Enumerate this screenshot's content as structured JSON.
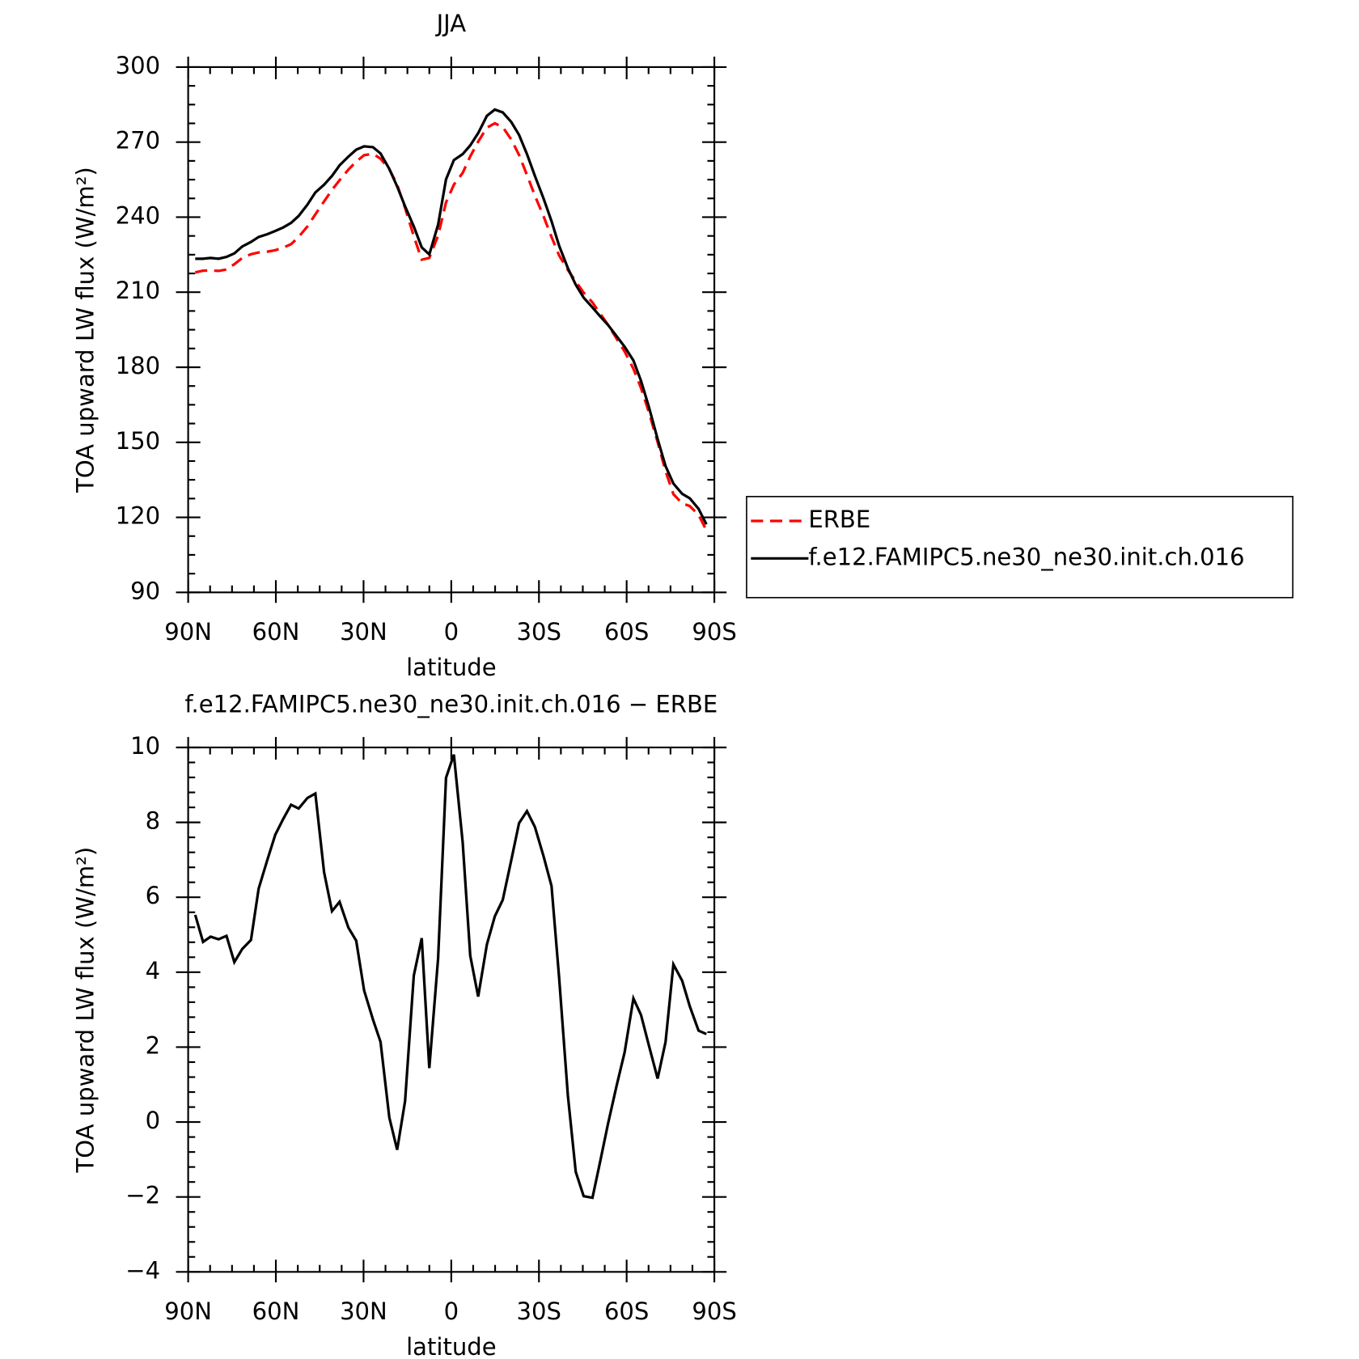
{
  "chart_data": [
    {
      "type": "line",
      "title": "JJA",
      "xlabel": "latitude",
      "ylabel": "TOA upward LW flux (W/m²)",
      "x": [
        87.6,
        84.9,
        82.3,
        79.6,
        76.9,
        74.2,
        71.5,
        68.5,
        65.9,
        62.9,
        60.2,
        57.5,
        54.8,
        52.2,
        49.2,
        46.5,
        43.5,
        40.8,
        38.2,
        35.2,
        32.5,
        29.8,
        26.8,
        24.2,
        21.2,
        18.5,
        15.8,
        12.8,
        10.1,
        7.5,
        4.5,
        1.8,
        -0.9,
        -3.9,
        -6.5,
        -9.2,
        -12.2,
        -14.9,
        -17.6,
        -20.5,
        -23.2,
        -25.9,
        -28.6,
        -31.6,
        -34.3,
        -36.9,
        -39.9,
        -42.6,
        -45.3,
        -48.3,
        -50.9,
        -53.6,
        -56.6,
        -59.3,
        -62.3,
        -64.9,
        -67.6,
        -70.6,
        -73.3,
        -76.0,
        -79.0,
        -81.6,
        -84.6,
        -87.3
      ],
      "series": [
        {
          "name": "ERBE",
          "color": "#ff0000",
          "line_style": "dashed",
          "values": [
            217.9,
            218.6,
            218.7,
            218.5,
            219.1,
            221.2,
            223.7,
            225.2,
            225.9,
            226.2,
            226.8,
            227.8,
            229.2,
            232.1,
            236.3,
            241.1,
            246.3,
            250.9,
            254.8,
            259.0,
            262.2,
            264.8,
            265.3,
            263.4,
            259.2,
            253.0,
            243.7,
            232.4,
            223.0,
            223.7,
            232.6,
            245.9,
            253.0,
            257.7,
            264.3,
            270.2,
            275.8,
            277.5,
            276.0,
            271.1,
            264.9,
            256.9,
            248.6,
            240.3,
            232.1,
            224.7,
            218.9,
            214.3,
            209.8,
            205.9,
            201.5,
            197.0,
            191.4,
            186.3,
            179.4,
            171.7,
            162.1,
            150.1,
            138.4,
            129.3,
            125.6,
            124.5,
            121.0,
            114.8
          ]
        },
        {
          "name": "f.e12.FAMIPC5.ne30_ne30.init.ch.016",
          "color": "#000000",
          "line_style": "solid",
          "values": [
            223.4,
            223.4,
            223.7,
            223.4,
            224.1,
            225.5,
            228.3,
            230.1,
            232.1,
            233.2,
            234.5,
            235.9,
            237.7,
            240.5,
            245.0,
            249.9,
            253.0,
            256.5,
            260.7,
            264.2,
            267.0,
            268.3,
            268.0,
            265.5,
            259.3,
            252.3,
            244.3,
            236.3,
            227.9,
            225.1,
            237.0,
            255.1,
            262.8,
            265.2,
            268.7,
            273.6,
            280.5,
            283.0,
            281.9,
            278.1,
            272.9,
            265.2,
            256.5,
            247.4,
            238.4,
            228.6,
            219.6,
            213.0,
            207.8,
            203.9,
            200.4,
            196.9,
            192.4,
            188.2,
            182.7,
            174.6,
            164.2,
            151.3,
            140.5,
            133.5,
            129.4,
            127.6,
            123.4,
            117.2
          ]
        }
      ],
      "xlim": [
        90,
        -90
      ],
      "xticks": [
        {
          "value": 90,
          "label": "90N"
        },
        {
          "value": 60,
          "label": "60N"
        },
        {
          "value": 30,
          "label": "30N"
        },
        0,
        {
          "value": -30,
          "label": "30S"
        },
        {
          "value": -60,
          "label": "60S"
        },
        {
          "value": -90,
          "label": "90S"
        }
      ],
      "ylim": [
        90,
        300
      ],
      "yticks": [
        90,
        120,
        150,
        180,
        210,
        240,
        270,
        300
      ],
      "legend": "outside-right"
    },
    {
      "type": "line",
      "title": "f.e12.FAMIPC5.ne30_ne30.init.ch.016 − ERBE",
      "xlabel": "latitude",
      "ylabel": "TOA upward LW flux (W/m²)",
      "x": [
        87.6,
        84.9,
        82.3,
        79.6,
        76.9,
        74.2,
        71.5,
        68.5,
        65.9,
        62.9,
        60.2,
        57.5,
        54.8,
        52.2,
        49.2,
        46.5,
        43.5,
        40.8,
        38.2,
        35.2,
        32.5,
        29.8,
        26.8,
        24.2,
        21.2,
        18.5,
        15.8,
        12.8,
        10.1,
        7.5,
        4.5,
        1.8,
        -0.9,
        -3.9,
        -6.5,
        -9.2,
        -12.2,
        -14.9,
        -17.6,
        -20.5,
        -23.2,
        -25.9,
        -28.6,
        -31.6,
        -34.3,
        -36.9,
        -39.9,
        -42.6,
        -45.3,
        -48.3,
        -50.9,
        -53.6,
        -56.6,
        -59.3,
        -62.3,
        -64.9,
        -67.6,
        -70.6,
        -73.3,
        -76.0,
        -79.0,
        -81.6,
        -84.6,
        -87.3
      ],
      "series": [
        {
          "color": "#000000",
          "line_style": "solid",
          "values": [
            5.53,
            4.81,
            4.95,
            4.88,
            4.97,
            4.27,
            4.62,
            4.86,
            6.23,
            7.0,
            7.67,
            8.09,
            8.47,
            8.37,
            8.65,
            8.77,
            6.67,
            5.63,
            5.88,
            5.19,
            4.84,
            3.51,
            2.74,
            2.14,
            0.12,
            -0.74,
            0.56,
            3.91,
            4.91,
            1.44,
            4.37,
            9.19,
            9.81,
            7.47,
            4.44,
            3.35,
            4.74,
            5.49,
            5.93,
            6.98,
            7.98,
            8.3,
            7.88,
            7.09,
            6.3,
            3.86,
            0.7,
            -1.33,
            -1.98,
            -2.02,
            -1.07,
            -0.05,
            0.98,
            1.86,
            3.3,
            2.86,
            2.05,
            1.16,
            2.14,
            4.21,
            3.77,
            3.09,
            2.44,
            2.35
          ]
        }
      ],
      "xlim": [
        90,
        -90
      ],
      "xticks": [
        {
          "value": 90,
          "label": "90N"
        },
        {
          "value": 60,
          "label": "60N"
        },
        {
          "value": 30,
          "label": "30N"
        },
        0,
        {
          "value": -30,
          "label": "30S"
        },
        {
          "value": -60,
          "label": "60S"
        },
        {
          "value": -90,
          "label": "90S"
        }
      ],
      "ylim": [
        -4,
        10
      ],
      "yticks": [
        {
          "value": -4,
          "label": "−4"
        },
        {
          "value": -2,
          "label": "−2"
        },
        0,
        2,
        4,
        6,
        8,
        10
      ]
    }
  ]
}
